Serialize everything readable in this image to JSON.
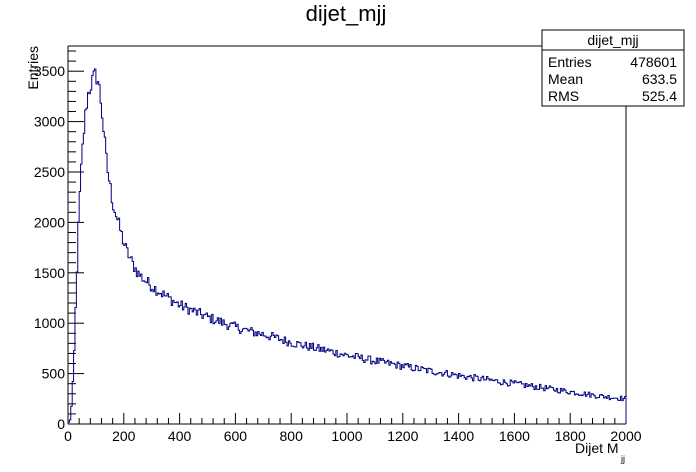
{
  "chart_data": {
    "type": "histogram",
    "title": "dijet_mjj",
    "xlabel": "Dijet M",
    "xlabel_subscript": "jj",
    "ylabel": "Entries",
    "xlim": [
      0,
      2000
    ],
    "ylim": [
      0,
      3750
    ],
    "xticks": [
      "0",
      "200",
      "400",
      "600",
      "800",
      "1000",
      "1200",
      "1400",
      "1600",
      "1800",
      "2000"
    ],
    "yticks": [
      "0",
      "500",
      "1000",
      "1500",
      "2000",
      "2500",
      "3000",
      "3500"
    ],
    "line_color": "#000080",
    "grid": false,
    "stats_box": {
      "title": "dijet_mjj",
      "position": "top-right",
      "rows": [
        {
          "label": "Entries",
          "value": "478601"
        },
        {
          "label": "Mean",
          "value": "633.5"
        },
        {
          "label": "RMS",
          "value": "525.4"
        }
      ]
    },
    "profile_points": [
      [
        0,
        0
      ],
      [
        10,
        60
      ],
      [
        20,
        500
      ],
      [
        30,
        1350
      ],
      [
        40,
        2150
      ],
      [
        50,
        2650
      ],
      [
        60,
        3000
      ],
      [
        70,
        3250
      ],
      [
        80,
        3350
      ],
      [
        90,
        3420
      ],
      [
        100,
        3470
      ],
      [
        110,
        3380
      ],
      [
        120,
        3150
      ],
      [
        130,
        2850
      ],
      [
        140,
        2550
      ],
      [
        150,
        2380
      ],
      [
        160,
        2200
      ],
      [
        170,
        2100
      ],
      [
        180,
        2000
      ],
      [
        190,
        1900
      ],
      [
        200,
        1800
      ],
      [
        210,
        1720
      ],
      [
        220,
        1660
      ],
      [
        230,
        1600
      ],
      [
        240,
        1550
      ],
      [
        250,
        1500
      ],
      [
        270,
        1440
      ],
      [
        300,
        1370
      ],
      [
        350,
        1270
      ],
      [
        400,
        1180
      ],
      [
        450,
        1120
      ],
      [
        500,
        1060
      ],
      [
        550,
        1010
      ],
      [
        600,
        960
      ],
      [
        650,
        920
      ],
      [
        700,
        890
      ],
      [
        750,
        850
      ],
      [
        800,
        810
      ],
      [
        850,
        775
      ],
      [
        900,
        745
      ],
      [
        950,
        715
      ],
      [
        1000,
        680
      ],
      [
        1050,
        655
      ],
      [
        1100,
        625
      ],
      [
        1150,
        600
      ],
      [
        1200,
        575
      ],
      [
        1250,
        550
      ],
      [
        1300,
        525
      ],
      [
        1350,
        505
      ],
      [
        1400,
        480
      ],
      [
        1450,
        460
      ],
      [
        1500,
        440
      ],
      [
        1550,
        420
      ],
      [
        1600,
        400
      ],
      [
        1650,
        380
      ],
      [
        1700,
        360
      ],
      [
        1750,
        340
      ],
      [
        1800,
        320
      ],
      [
        1850,
        300
      ],
      [
        1900,
        280
      ],
      [
        1950,
        265
      ],
      [
        2000,
        250
      ]
    ]
  }
}
